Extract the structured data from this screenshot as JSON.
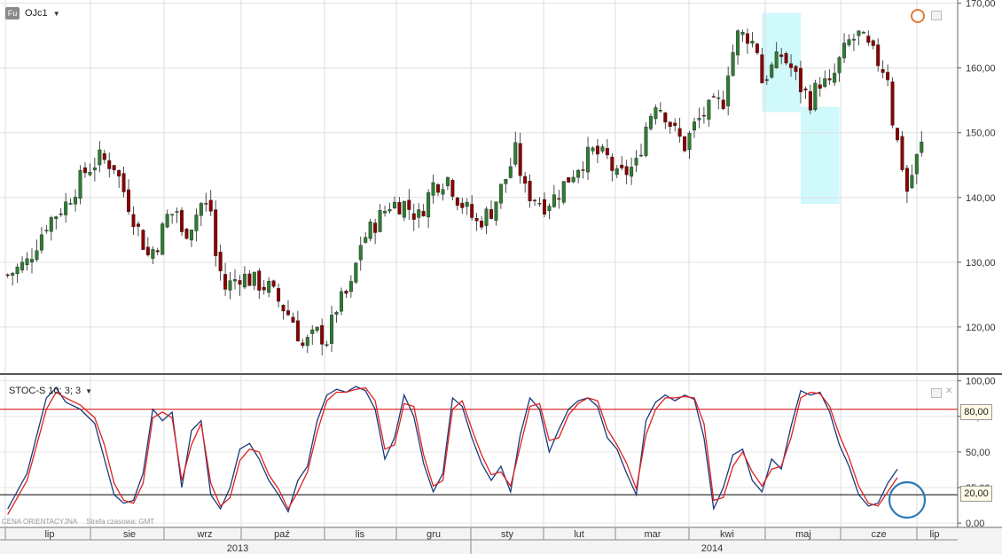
{
  "toolbar": {
    "symbol_badge": "Fu",
    "symbol": "OJc1"
  },
  "indicator": {
    "label": "STOC-S 10; 3; 3"
  },
  "footer": {
    "price_note": "CENA ORIENTACYJNA",
    "timezone": "Strefa czasowa: GMT"
  },
  "colors": {
    "candle_up": "#2e7d32",
    "candle_down": "#8b0000",
    "k_line": "#1a3a7a",
    "d_line": "#e02020",
    "highlight": "#c8f8fb",
    "circle": "#2a7ab8"
  },
  "chart_data": [
    {
      "type": "candlestick",
      "y_ticks": [
        "170,00",
        "160,00",
        "150,00",
        "140,00",
        "130,00",
        "120,00"
      ],
      "y_tick_values": [
        170,
        160,
        150,
        140,
        130,
        120
      ],
      "ylim": [
        113,
        170.5
      ],
      "month_labels": [
        "lip",
        "sie",
        "wrz",
        "paź",
        "lis",
        "gru",
        "sty",
        "lut",
        "mar",
        "kwi",
        "maj",
        "cze",
        "lip"
      ],
      "year_labels": [
        "2013",
        "2014"
      ],
      "close_path": [
        [
          0,
          128
        ],
        [
          4,
          130
        ],
        [
          8,
          136
        ],
        [
          12,
          139
        ],
        [
          16,
          144
        ],
        [
          19,
          146
        ],
        [
          22,
          145
        ],
        [
          24,
          141
        ],
        [
          27,
          135
        ],
        [
          29,
          131
        ],
        [
          31,
          133
        ],
        [
          33,
          137
        ],
        [
          35,
          138
        ],
        [
          36,
          134
        ],
        [
          38,
          136
        ],
        [
          40,
          139
        ],
        [
          42,
          138
        ],
        [
          43,
          131
        ],
        [
          45,
          126
        ],
        [
          48,
          128
        ],
        [
          51,
          127
        ],
        [
          54,
          126
        ],
        [
          56,
          124
        ],
        [
          59,
          121
        ],
        [
          61,
          117
        ],
        [
          64,
          119
        ],
        [
          66,
          118
        ],
        [
          68,
          123
        ],
        [
          71,
          126
        ],
        [
          73,
          133
        ],
        [
          76,
          136
        ],
        [
          79,
          139
        ],
        [
          82,
          139
        ],
        [
          85,
          137
        ],
        [
          88,
          142
        ],
        [
          91,
          143
        ],
        [
          93,
          140
        ],
        [
          95,
          138
        ],
        [
          97,
          136
        ],
        [
          100,
          138
        ],
        [
          103,
          143
        ],
        [
          105,
          147
        ],
        [
          107,
          141
        ],
        [
          109,
          140
        ],
        [
          111,
          139
        ],
        [
          113,
          140
        ],
        [
          115,
          142
        ],
        [
          118,
          145
        ],
        [
          121,
          147
        ],
        [
          124,
          146
        ],
        [
          126,
          143
        ],
        [
          128,
          144
        ],
        [
          130,
          145
        ],
        [
          132,
          151
        ],
        [
          134,
          155
        ],
        [
          136,
          153
        ],
        [
          138,
          150
        ],
        [
          140,
          148
        ],
        [
          142,
          151
        ],
        [
          144,
          153
        ],
        [
          146,
          154
        ],
        [
          148,
          155
        ],
        [
          149,
          160
        ],
        [
          151,
          165
        ],
        [
          153,
          165
        ],
        [
          155,
          163
        ],
        [
          156,
          158
        ],
        [
          158,
          160
        ],
        [
          160,
          162
        ],
        [
          162,
          160
        ],
        [
          164,
          157
        ],
        [
          166,
          155
        ],
        [
          168,
          158
        ],
        [
          170,
          157
        ],
        [
          172,
          161
        ],
        [
          174,
          164
        ],
        [
          176,
          165
        ],
        [
          178,
          163
        ],
        [
          180,
          161
        ],
        [
          182,
          159
        ],
        [
          183,
          152
        ],
        [
          185,
          145
        ],
        [
          186,
          141
        ],
        [
          188,
          146
        ],
        [
          189,
          148
        ]
      ],
      "highlight_boxes": [
        {
          "x0": 156.5,
          "x1": 164.5,
          "y0": 153.2,
          "y1": 168.5
        },
        {
          "x0": 164.5,
          "x1": 172.5,
          "y0": 139,
          "y1": 154
        }
      ]
    },
    {
      "type": "line",
      "title": "STOC-S 10; 3; 3",
      "y_ticks": [
        "100,00",
        "75,00",
        "50,00",
        "25,00",
        "0,00"
      ],
      "y_tick_values": [
        100,
        75,
        50,
        25,
        0
      ],
      "ylim": [
        -3,
        101
      ],
      "reference_lines": [
        {
          "value": 80,
          "label": "80,00"
        },
        {
          "value": 20,
          "label": "20,00"
        }
      ],
      "series": [
        {
          "values_at": [
            [
              0,
              10
            ],
            [
              4,
              35
            ],
            [
              8,
              88
            ],
            [
              10,
              95
            ],
            [
              12,
              85
            ],
            [
              15,
              80
            ],
            [
              18,
              70
            ],
            [
              20,
              45
            ],
            [
              22,
              20
            ],
            [
              24,
              14
            ],
            [
              26,
              16
            ],
            [
              28,
              35
            ],
            [
              30,
              80
            ],
            [
              32,
              72
            ],
            [
              34,
              78
            ],
            [
              36,
              25
            ],
            [
              38,
              65
            ],
            [
              40,
              72
            ],
            [
              42,
              20
            ],
            [
              44,
              10
            ],
            [
              46,
              25
            ],
            [
              48,
              52
            ],
            [
              50,
              56
            ],
            [
              52,
              45
            ],
            [
              54,
              30
            ],
            [
              56,
              20
            ],
            [
              58,
              8
            ],
            [
              60,
              30
            ],
            [
              62,
              40
            ],
            [
              64,
              72
            ],
            [
              66,
              90
            ],
            [
              68,
              94
            ],
            [
              70,
              92
            ],
            [
              72,
              96
            ],
            [
              74,
              93
            ],
            [
              76,
              80
            ],
            [
              78,
              45
            ],
            [
              80,
              60
            ],
            [
              82,
              90
            ],
            [
              84,
              75
            ],
            [
              86,
              42
            ],
            [
              88,
              22
            ],
            [
              90,
              35
            ],
            [
              92,
              88
            ],
            [
              94,
              82
            ],
            [
              96,
              60
            ],
            [
              98,
              42
            ],
            [
              100,
              30
            ],
            [
              102,
              40
            ],
            [
              104,
              22
            ],
            [
              106,
              62
            ],
            [
              108,
              88
            ],
            [
              110,
              80
            ],
            [
              112,
              50
            ],
            [
              114,
              66
            ],
            [
              116,
              80
            ],
            [
              118,
              86
            ],
            [
              120,
              88
            ],
            [
              122,
              82
            ],
            [
              124,
              60
            ],
            [
              126,
              52
            ],
            [
              128,
              35
            ],
            [
              130,
              20
            ],
            [
              132,
              72
            ],
            [
              134,
              85
            ],
            [
              136,
              90
            ],
            [
              138,
              86
            ],
            [
              140,
              90
            ],
            [
              142,
              87
            ],
            [
              144,
              60
            ],
            [
              146,
              10
            ],
            [
              148,
              25
            ],
            [
              150,
              48
            ],
            [
              152,
              52
            ],
            [
              154,
              30
            ],
            [
              156,
              22
            ],
            [
              158,
              45
            ],
            [
              160,
              38
            ],
            [
              162,
              68
            ],
            [
              164,
              93
            ],
            [
              166,
              90
            ],
            [
              168,
              92
            ],
            [
              170,
              78
            ],
            [
              172,
              55
            ],
            [
              174,
              40
            ],
            [
              176,
              20
            ],
            [
              178,
              12
            ],
            [
              180,
              14
            ],
            [
              182,
              28
            ],
            [
              184,
              38
            ]
          ]
        },
        {
          "values_at": [
            [
              0,
              6
            ],
            [
              4,
              30
            ],
            [
              8,
              80
            ],
            [
              10,
              92
            ],
            [
              12,
              88
            ],
            [
              15,
              83
            ],
            [
              18,
              74
            ],
            [
              20,
              55
            ],
            [
              22,
              28
            ],
            [
              24,
              16
            ],
            [
              26,
              14
            ],
            [
              28,
              28
            ],
            [
              30,
              74
            ],
            [
              32,
              78
            ],
            [
              34,
              74
            ],
            [
              36,
              30
            ],
            [
              38,
              55
            ],
            [
              40,
              70
            ],
            [
              42,
              28
            ],
            [
              44,
              12
            ],
            [
              46,
              18
            ],
            [
              48,
              44
            ],
            [
              50,
              52
            ],
            [
              52,
              50
            ],
            [
              54,
              34
            ],
            [
              56,
              24
            ],
            [
              58,
              10
            ],
            [
              60,
              22
            ],
            [
              62,
              36
            ],
            [
              64,
              64
            ],
            [
              66,
              86
            ],
            [
              68,
              92
            ],
            [
              70,
              92
            ],
            [
              72,
              94
            ],
            [
              74,
              95
            ],
            [
              76,
              86
            ],
            [
              78,
              52
            ],
            [
              80,
              55
            ],
            [
              82,
              84
            ],
            [
              84,
              82
            ],
            [
              86,
              48
            ],
            [
              88,
              26
            ],
            [
              90,
              30
            ],
            [
              92,
              80
            ],
            [
              94,
              86
            ],
            [
              96,
              66
            ],
            [
              98,
              48
            ],
            [
              100,
              34
            ],
            [
              102,
              36
            ],
            [
              104,
              26
            ],
            [
              106,
              54
            ],
            [
              108,
              82
            ],
            [
              110,
              84
            ],
            [
              112,
              58
            ],
            [
              114,
              60
            ],
            [
              116,
              76
            ],
            [
              118,
              84
            ],
            [
              120,
              88
            ],
            [
              122,
              86
            ],
            [
              124,
              66
            ],
            [
              126,
              55
            ],
            [
              128,
              42
            ],
            [
              130,
              24
            ],
            [
              132,
              62
            ],
            [
              134,
              80
            ],
            [
              136,
              88
            ],
            [
              138,
              88
            ],
            [
              140,
              89
            ],
            [
              142,
              88
            ],
            [
              144,
              70
            ],
            [
              146,
              16
            ],
            [
              148,
              18
            ],
            [
              150,
              40
            ],
            [
              152,
              50
            ],
            [
              154,
              36
            ],
            [
              156,
              26
            ],
            [
              158,
              38
            ],
            [
              160,
              40
            ],
            [
              162,
              60
            ],
            [
              164,
              88
            ],
            [
              166,
              92
            ],
            [
              168,
              91
            ],
            [
              170,
              82
            ],
            [
              172,
              62
            ],
            [
              174,
              46
            ],
            [
              176,
              26
            ],
            [
              178,
              14
            ],
            [
              180,
              12
            ],
            [
              182,
              22
            ],
            [
              184,
              32
            ]
          ]
        }
      ]
    }
  ]
}
